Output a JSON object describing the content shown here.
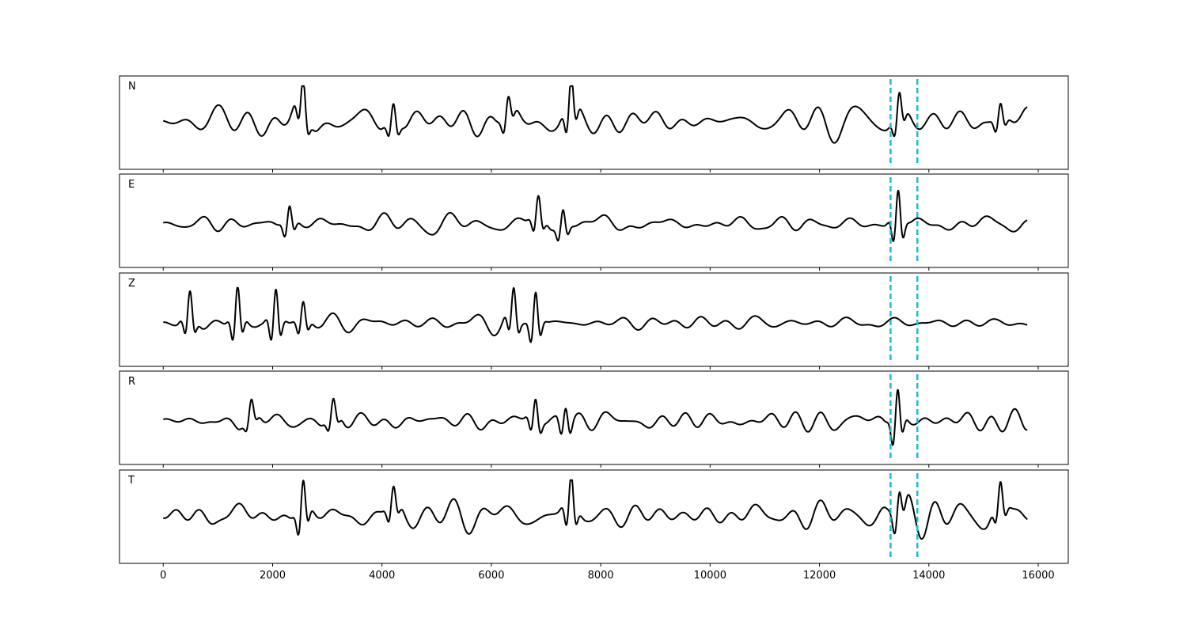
{
  "chart_data": {
    "type": "line",
    "title": "",
    "xlabel": "",
    "ylabel": "",
    "xlim": [
      -800,
      16550
    ],
    "x_ticks": [
      0,
      2000,
      4000,
      6000,
      8000,
      10000,
      12000,
      14000,
      16000
    ],
    "x_tick_labels": [
      "0",
      "2000",
      "4000",
      "6000",
      "8000",
      "10000",
      "12000",
      "14000",
      "16000"
    ],
    "sample_range": [
      0,
      15800
    ],
    "grid": false,
    "legend": "none",
    "trace_color": "#000000",
    "marker_color": "#17becf",
    "vertical_markers": [
      13300,
      13790
    ],
    "panels": [
      {
        "label": "N",
        "amplitude": 1.0,
        "ylim": [
          -1.2,
          1.2
        ],
        "bursts": [
          {
            "x": 2550,
            "a": 0.9
          },
          {
            "x": 4200,
            "a": 0.6
          },
          {
            "x": 6300,
            "a": 0.55
          },
          {
            "x": 7450,
            "a": 1.0
          },
          {
            "x": 13450,
            "a": 0.7
          },
          {
            "x": 15300,
            "a": 0.5
          }
        ]
      },
      {
        "label": "E",
        "amplitude": 0.55,
        "ylim": [
          -1.2,
          1.2
        ],
        "bursts": [
          {
            "x": 2300,
            "a": 0.55
          },
          {
            "x": 6850,
            "a": 0.65
          },
          {
            "x": 7300,
            "a": 0.55
          },
          {
            "x": 13430,
            "a": 1.0
          }
        ]
      },
      {
        "label": "Z",
        "amplitude": 0.45,
        "ylim": [
          -1.2,
          1.2
        ],
        "bursts": [
          {
            "x": 480,
            "a": 0.8
          },
          {
            "x": 1350,
            "a": 1.0
          },
          {
            "x": 2050,
            "a": 1.0
          },
          {
            "x": 2550,
            "a": 0.6
          },
          {
            "x": 6400,
            "a": 0.85
          },
          {
            "x": 6800,
            "a": 0.95
          }
        ]
      },
      {
        "label": "R",
        "amplitude": 0.6,
        "ylim": [
          -1.2,
          1.2
        ],
        "bursts": [
          {
            "x": 1600,
            "a": 0.45
          },
          {
            "x": 3100,
            "a": 0.5
          },
          {
            "x": 6800,
            "a": 0.65
          },
          {
            "x": 7350,
            "a": 0.6
          },
          {
            "x": 13420,
            "a": 1.0
          }
        ]
      },
      {
        "label": "T",
        "amplitude": 1.0,
        "ylim": [
          -1.2,
          1.2
        ],
        "bursts": [
          {
            "x": 2550,
            "a": 0.95
          },
          {
            "x": 4200,
            "a": 0.6
          },
          {
            "x": 7450,
            "a": 1.0
          },
          {
            "x": 13450,
            "a": 0.7
          },
          {
            "x": 15300,
            "a": 0.7
          }
        ]
      }
    ]
  }
}
